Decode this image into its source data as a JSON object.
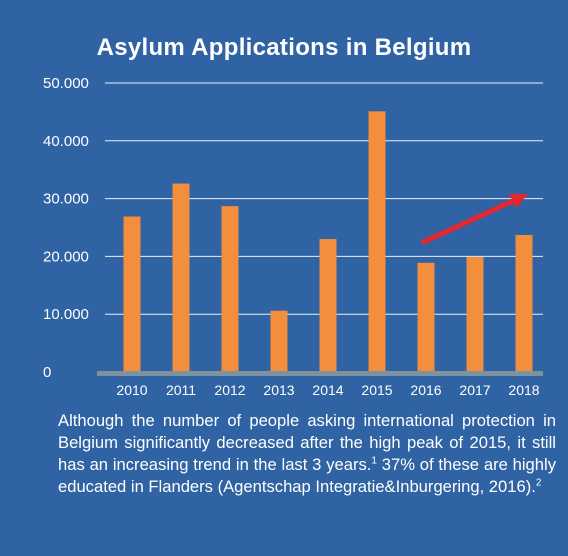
{
  "colors": {
    "background": "#2f63a3",
    "bar": "#f28e3c",
    "baseline": "#7f939f",
    "arrow": "#e8262d",
    "grid": "#ffffff",
    "text": "#ffffff"
  },
  "chart_data": {
    "type": "bar",
    "title": "Asylum Applications in Belgium",
    "xlabel": "",
    "ylabel": "",
    "categories": [
      "2010",
      "2011",
      "2012",
      "2013",
      "2014",
      "2015",
      "2016",
      "2017",
      "2018"
    ],
    "values": [
      26900,
      32600,
      28700,
      10600,
      23000,
      45100,
      18900,
      19900,
      23700
    ],
    "ylim": [
      0,
      50000
    ],
    "yticks": [
      "0",
      "10.000",
      "20.000",
      "30.000",
      "40.000",
      "50.000"
    ],
    "grid": true,
    "annotation": {
      "type": "trend-arrow",
      "from_year": "2016",
      "to_year": "2018"
    }
  },
  "caption": {
    "text": "Although the number of people asking international protection in Belgium significantly decreased after the high peak of 2015, it still has an increasing trend in the last 3 years.",
    "sup1": "1",
    "text2": " 37% of these are highly educated in Flanders (Agentschap Integratie&Inburgering, 2016).",
    "sup2": "2"
  }
}
